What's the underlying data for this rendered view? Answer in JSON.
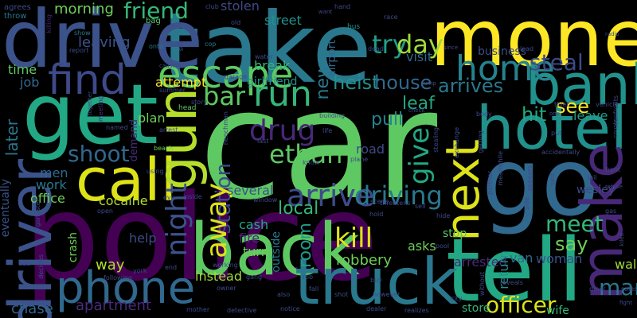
{
  "words": [
    {
      "text": "car",
      "color": "#5ec962"
    },
    {
      "text": "police",
      "color": "#440154"
    },
    {
      "text": "take",
      "color": "#2a788e"
    },
    {
      "text": "drive",
      "color": "#3b528b"
    },
    {
      "text": "get",
      "color": "#22a884"
    },
    {
      "text": "money",
      "color": "#fde725"
    },
    {
      "text": "go",
      "color": "#31688e"
    },
    {
      "text": "tell",
      "color": "#22a884"
    },
    {
      "text": "hotel",
      "color": "#21918c"
    },
    {
      "text": "back",
      "color": "#5ec962"
    },
    {
      "text": "truck",
      "color": "#2a788e"
    },
    {
      "text": "call",
      "color": "#dde318"
    },
    {
      "text": "gun",
      "color": "#b5de2b"
    },
    {
      "text": "bank",
      "color": "#21918c"
    },
    {
      "text": "make",
      "color": "#482878"
    },
    {
      "text": "driver",
      "color": "#3b528b"
    },
    {
      "text": "phone",
      "color": "#31688e"
    },
    {
      "text": "find",
      "color": "#3e4a89"
    },
    {
      "text": "next",
      "color": "#dde318"
    },
    {
      "text": "escape",
      "color": "#5ec962"
    },
    {
      "text": "home",
      "color": "#26828e"
    },
    {
      "text": "run",
      "color": "#35b779"
    },
    {
      "text": "drug",
      "color": "#482878"
    },
    {
      "text": "arrive",
      "color": "#3e4a89"
    },
    {
      "text": "driving",
      "color": "#2a788e"
    },
    {
      "text": "kill",
      "color": "#dde318"
    },
    {
      "text": "give",
      "color": "#22a884"
    },
    {
      "text": "night",
      "color": "#3b528b"
    },
    {
      "text": "station",
      "color": "#3e4a89"
    },
    {
      "text": "away",
      "color": "#dde318"
    },
    {
      "text": "ethan",
      "color": "#5ec962"
    },
    {
      "text": "bar",
      "color": "#5ec962"
    },
    {
      "text": "shoot",
      "color": "#31688e"
    },
    {
      "text": "friend",
      "color": "#35b779"
    },
    {
      "text": "try",
      "color": "#1f9e89"
    },
    {
      "text": "day",
      "color": "#a0da39"
    },
    {
      "text": "steal",
      "color": "#3e4a89"
    },
    {
      "text": "meet",
      "color": "#35b779"
    },
    {
      "text": "man",
      "color": "#2a788e"
    },
    {
      "text": "officer",
      "color": "#dde318"
    },
    {
      "text": "see",
      "color": "#fde725"
    },
    {
      "text": "hit",
      "color": "#22a884"
    },
    {
      "text": "say",
      "color": "#6ece58"
    },
    {
      "text": "heist",
      "color": "#21918c"
    },
    {
      "text": "house",
      "color": "#31688e"
    },
    {
      "text": "arrives",
      "color": "#2a788e"
    },
    {
      "text": "leaf",
      "color": "#22a884"
    },
    {
      "text": "leave",
      "color": "#1f9e89"
    },
    {
      "text": "pull",
      "color": "#26828e"
    },
    {
      "text": "room",
      "color": "#1f9e89"
    },
    {
      "text": "local",
      "color": "#35b779"
    },
    {
      "text": "new",
      "color": "#2a788e"
    },
    {
      "text": "attempt",
      "color": "#fde725"
    },
    {
      "text": "plan",
      "color": "#6ece58"
    },
    {
      "text": "morning",
      "color": "#6ece58"
    },
    {
      "text": "leaving",
      "color": "#3b528b"
    },
    {
      "text": "time",
      "color": "#5ec962"
    },
    {
      "text": "job",
      "color": "#31688e"
    },
    {
      "text": "later",
      "color": "#2a788e"
    },
    {
      "text": "eventually",
      "color": "#3b528b"
    },
    {
      "text": "men",
      "color": "#31688e"
    },
    {
      "text": "work",
      "color": "#2a788e"
    },
    {
      "text": "office",
      "color": "#6ece58"
    },
    {
      "text": "cocaine",
      "color": "#b5de2b"
    },
    {
      "text": "chase",
      "color": "#31688e"
    },
    {
      "text": "crash",
      "color": "#6ece58"
    },
    {
      "text": "way",
      "color": "#b5de2b"
    },
    {
      "text": "help",
      "color": "#3e4a89"
    },
    {
      "text": "apartment",
      "color": "#472c7a"
    },
    {
      "text": "instead",
      "color": "#a0da39"
    },
    {
      "text": "several",
      "color": "#3b528b"
    },
    {
      "text": "cash",
      "color": "#22a884"
    },
    {
      "text": "fire",
      "color": "#472c7a"
    },
    {
      "text": "turn",
      "color": "#6ece58"
    },
    {
      "text": "outside",
      "color": "#2a788e"
    },
    {
      "text": "robbery",
      "color": "#6ece58"
    },
    {
      "text": "asks",
      "color": "#6ece58"
    },
    {
      "text": "stop",
      "color": "#5ec962"
    },
    {
      "text": "arrested",
      "color": "#482878"
    },
    {
      "text": "return",
      "color": "#21918c"
    },
    {
      "text": "van",
      "color": "#31688e"
    },
    {
      "text": "woman",
      "color": "#3b528b"
    },
    {
      "text": "wesley",
      "color": "#3e4a89"
    },
    {
      "text": "walk",
      "color": "#a0da39"
    },
    {
      "text": "wife",
      "color": "#35b779"
    },
    {
      "text": "store",
      "color": "#35b779"
    },
    {
      "text": "business",
      "color": "#3e4a89"
    },
    {
      "text": "visit",
      "color": "#31688e"
    },
    {
      "text": "airport",
      "color": "#31688e"
    },
    {
      "text": "break",
      "color": "#35b779"
    },
    {
      "text": "street",
      "color": "#21918c"
    },
    {
      "text": "stolen",
      "color": "#3e4a89"
    },
    {
      "text": "road",
      "color": "#3e4a89"
    },
    {
      "text": "demand",
      "color": "#472c7a"
    },
    {
      "text": "girlfriend",
      "color": "#21918c"
    },
    {
      "text": "agrees",
      "color": "#3e4a89"
    },
    {
      "text": "throw",
      "color": "#2a788e"
    },
    {
      "text": "bag",
      "color": "#5ec962"
    },
    {
      "text": "killing",
      "color": "#482878"
    },
    {
      "text": "show",
      "color": "#2a788e"
    },
    {
      "text": "report",
      "color": "#3e4a89"
    },
    {
      "text": "onto",
      "color": "#2a788e"
    },
    {
      "text": "set",
      "color": "#3e4a89"
    },
    {
      "text": "cop",
      "color": "#2a788e"
    },
    {
      "text": "water",
      "color": "#3e4a89"
    },
    {
      "text": "garage",
      "color": "#3e4a89"
    },
    {
      "text": "head",
      "color": "#5ec962"
    },
    {
      "text": "story",
      "color": "#3e4a89"
    },
    {
      "text": "arrest",
      "color": "#3e4a89"
    },
    {
      "text": "beach",
      "color": "#6ece58"
    },
    {
      "text": "named",
      "color": "#3e4a89"
    },
    {
      "text": "meeting",
      "color": "#482878"
    },
    {
      "text": "together",
      "color": "#3e4a89"
    },
    {
      "text": "causing",
      "color": "#3e4a89"
    },
    {
      "text": "jump",
      "color": "#3e4a89"
    },
    {
      "text": "club",
      "color": "#3e4a89"
    },
    {
      "text": "old",
      "color": "#3e4a89"
    },
    {
      "text": "bus",
      "color": "#21918c"
    },
    {
      "text": "hand",
      "color": "#3e4a89"
    },
    {
      "text": "want",
      "color": "#3e4a89"
    },
    {
      "text": "race",
      "color": "#3e4a89"
    },
    {
      "text": "dead",
      "color": "#3e4a89"
    },
    {
      "text": "since",
      "color": "#3e4a89"
    },
    {
      "text": "lead",
      "color": "#3e4a89"
    },
    {
      "text": "radio",
      "color": "#3e4a89"
    },
    {
      "text": "confronts",
      "color": "#3e4a89"
    },
    {
      "text": "vehicle",
      "color": "#3e4a89"
    },
    {
      "text": "thief",
      "color": "#3e4a89"
    },
    {
      "text": "couple",
      "color": "#3e4a89"
    },
    {
      "text": "body",
      "color": "#3e4a89"
    },
    {
      "text": "check",
      "color": "#3e4a89"
    },
    {
      "text": "exchange",
      "color": "#3e4a89"
    },
    {
      "text": "one",
      "color": "#3e4a89"
    },
    {
      "text": "put",
      "color": "#3e4a89"
    },
    {
      "text": "jail",
      "color": "#3e4a89"
    },
    {
      "text": "front",
      "color": "#3e4a89"
    },
    {
      "text": "refuse",
      "color": "#3e4a89"
    },
    {
      "text": "gas",
      "color": "#3e4a89"
    },
    {
      "text": "kiled",
      "color": "#3e4a89"
    },
    {
      "text": "diner",
      "color": "#3e4a89"
    },
    {
      "text": "salesman",
      "color": "#3e4a89"
    },
    {
      "text": "fight",
      "color": "#3e4a89"
    },
    {
      "text": "realizes",
      "color": "#3e4a89"
    },
    {
      "text": "dealer",
      "color": "#3e4a89"
    },
    {
      "text": "notice",
      "color": "#3e4a89"
    },
    {
      "text": "detective",
      "color": "#3e4a89"
    },
    {
      "text": "mother",
      "color": "#3e4a89"
    },
    {
      "text": "owner",
      "color": "#3e4a89"
    },
    {
      "text": "also",
      "color": "#3e4a89"
    },
    {
      "text": "fall",
      "color": "#3e4a89"
    },
    {
      "text": "shot",
      "color": "#3e4a89"
    },
    {
      "text": "however",
      "color": "#3e4a89"
    },
    {
      "text": "buy",
      "color": "#3e4a89"
    },
    {
      "text": "rob",
      "color": "#3e4a89"
    },
    {
      "text": "gang",
      "color": "#3e4a89"
    },
    {
      "text": "working",
      "color": "#3e4a89"
    },
    {
      "text": "window",
      "color": "#3e4a89"
    },
    {
      "text": "scene",
      "color": "#3e4a89"
    },
    {
      "text": "hold",
      "color": "#3e4a89"
    },
    {
      "text": "threatens",
      "color": "#3e4a89"
    },
    {
      "text": "sell",
      "color": "#3e4a89"
    },
    {
      "text": "hide",
      "color": "#3e4a89"
    },
    {
      "text": "pool",
      "color": "#3e4a89"
    },
    {
      "text": "reveals",
      "color": "#3e4a89"
    },
    {
      "text": "city",
      "color": "#3e4a89"
    },
    {
      "text": "without",
      "color": "#3e4a89"
    },
    {
      "text": "partner",
      "color": "#3e4a89"
    },
    {
      "text": "side",
      "color": "#3e4a89"
    },
    {
      "text": "appears",
      "color": "#3e4a89"
    },
    {
      "text": "sent",
      "color": "#3e4a89"
    },
    {
      "text": "end",
      "color": "#3e4a89"
    },
    {
      "text": "york",
      "color": "#3e4a89"
    },
    {
      "text": "following",
      "color": "#3e4a89"
    },
    {
      "text": "gangster",
      "color": "#3e4a89"
    },
    {
      "text": "dad",
      "color": "#3e4a89"
    },
    {
      "text": "decides",
      "color": "#3e4a89"
    },
    {
      "text": "open",
      "color": "#3e4a89"
    },
    {
      "text": "eye",
      "color": "#3e4a89"
    },
    {
      "text": "inside",
      "color": "#3e4a89"
    },
    {
      "text": "using",
      "color": "#3e4a89"
    },
    {
      "text": "life",
      "color": "#3e4a89"
    },
    {
      "text": "last",
      "color": "#3e4a89"
    },
    {
      "text": "plane",
      "color": "#3e4a89"
    },
    {
      "text": "know",
      "color": "#3e4a89"
    },
    {
      "text": "building",
      "color": "#3e4a89"
    },
    {
      "text": "stealing",
      "color": "#3e4a89"
    },
    {
      "text": "getting",
      "color": "#3e4a89"
    },
    {
      "text": "accidentally",
      "color": "#3e4a89"
    },
    {
      "text": "meanwhile",
      "color": "#3e4a89"
    },
    {
      "text": "henchman",
      "color": "#3e4a89"
    },
    {
      "text": "summer",
      "color": "#3e4a89"
    }
  ]
}
